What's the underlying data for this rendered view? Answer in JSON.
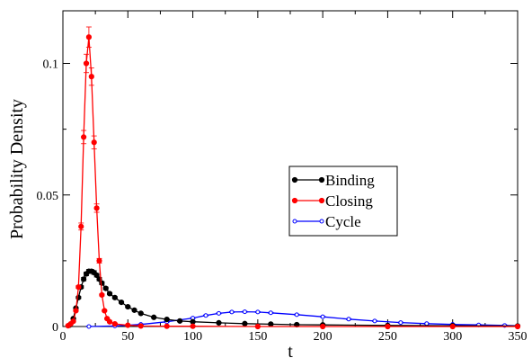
{
  "chart_data": {
    "type": "line",
    "xlabel": "t",
    "ylabel": "Probability Density",
    "xlim": [
      0,
      350
    ],
    "ylim": [
      0,
      0.12
    ],
    "x_ticks": [
      0,
      50,
      100,
      150,
      200,
      250,
      300,
      350
    ],
    "x_tick_labels": [
      "0",
      "50",
      "100",
      "150",
      "200",
      "250",
      "300",
      "350"
    ],
    "y_ticks": [
      0,
      0.05,
      0.1
    ],
    "y_tick_labels": [
      "0",
      "0.05",
      "0.1"
    ],
    "grid": false,
    "legend": {
      "placement": "center-right"
    },
    "series": [
      {
        "name": "Binding",
        "color": "#000000",
        "marker": "filled-circle",
        "error_bars": true,
        "x": [
          5,
          8,
          10,
          12,
          14,
          16,
          18,
          20,
          22,
          24,
          26,
          28,
          30,
          33,
          36,
          40,
          45,
          50,
          55,
          60,
          70,
          80,
          90,
          100,
          120,
          140,
          160,
          180,
          200,
          250,
          300,
          350
        ],
        "y": [
          0.0005,
          0.003,
          0.007,
          0.011,
          0.015,
          0.018,
          0.02,
          0.021,
          0.021,
          0.0205,
          0.0195,
          0.018,
          0.0165,
          0.0145,
          0.0125,
          0.011,
          0.0092,
          0.0075,
          0.0062,
          0.005,
          0.0035,
          0.0027,
          0.0021,
          0.0018,
          0.0014,
          0.0011,
          0.0009,
          0.0007,
          0.0006,
          0.0004,
          0.0003,
          0.0002
        ]
      },
      {
        "name": "Closing",
        "color": "#ff0000",
        "marker": "filled-circle",
        "error_bars": true,
        "x": [
          4,
          6,
          8,
          10,
          12,
          14,
          16,
          18,
          20,
          22,
          24,
          26,
          28,
          30,
          32,
          34,
          36,
          40,
          50,
          60,
          80,
          100,
          150,
          200,
          250,
          300,
          350
        ],
        "y": [
          0.0003,
          0.001,
          0.002,
          0.006,
          0.015,
          0.038,
          0.072,
          0.1,
          0.11,
          0.095,
          0.07,
          0.045,
          0.025,
          0.012,
          0.006,
          0.003,
          0.0018,
          0.001,
          0.0005,
          0.0002,
          0.0001,
          0.0001,
          0.0,
          0.0,
          0.0,
          0.0,
          0.0
        ]
      },
      {
        "name": "Cycle",
        "color": "#0000ff",
        "marker": "open-circle",
        "error_bars": true,
        "x": [
          20,
          40,
          60,
          80,
          100,
          110,
          120,
          130,
          140,
          150,
          160,
          180,
          200,
          220,
          240,
          260,
          280,
          300,
          320,
          340,
          350
        ],
        "y": [
          0.0,
          0.0002,
          0.0008,
          0.0018,
          0.0032,
          0.0042,
          0.005,
          0.0055,
          0.0056,
          0.0055,
          0.0052,
          0.0045,
          0.0037,
          0.0028,
          0.0021,
          0.0015,
          0.0011,
          0.0008,
          0.0006,
          0.0004,
          0.0003
        ]
      }
    ]
  }
}
